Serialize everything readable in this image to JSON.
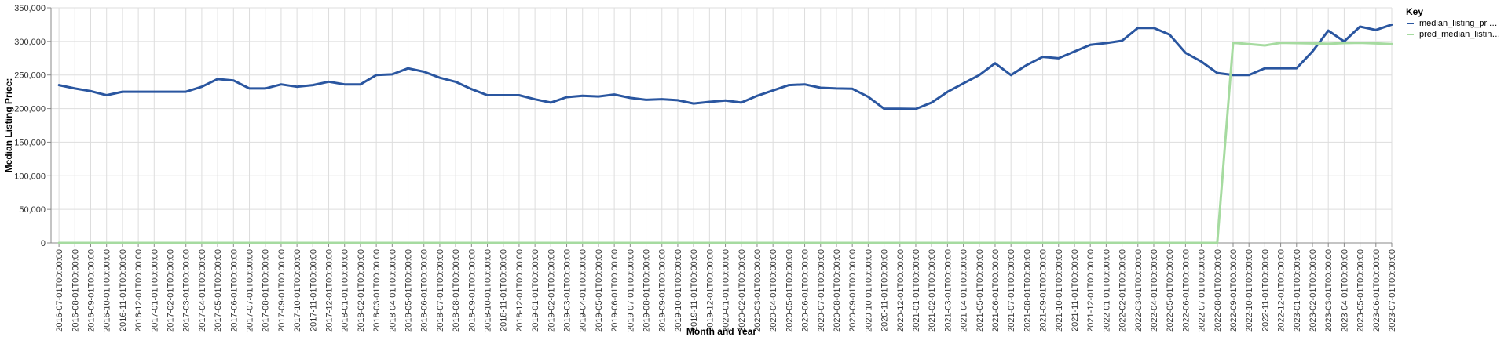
{
  "chart_data": {
    "type": "line",
    "xlabel": "Month and Year",
    "ylabel": "Median Listing Price:",
    "ylim": [
      0,
      350000
    ],
    "yticks": [
      0,
      50000,
      100000,
      150000,
      200000,
      250000,
      300000,
      350000
    ],
    "ytick_labels": [
      "0",
      "50,000",
      "100,000",
      "150,000",
      "200,000",
      "250,000",
      "300,000",
      "350,000"
    ],
    "grid": true,
    "legend_position": "top-right",
    "legend_title": "Key",
    "categories": [
      "2016-07-01T00:00:00",
      "2016-08-01T00:00:00",
      "2016-09-01T00:00:00",
      "2016-10-01T00:00:00",
      "2016-11-01T00:00:00",
      "2016-12-01T00:00:00",
      "2017-01-01T00:00:00",
      "2017-02-01T00:00:00",
      "2017-03-01T00:00:00",
      "2017-04-01T00:00:00",
      "2017-05-01T00:00:00",
      "2017-06-01T00:00:00",
      "2017-07-01T00:00:00",
      "2017-08-01T00:00:00",
      "2017-09-01T00:00:00",
      "2017-10-01T00:00:00",
      "2017-11-01T00:00:00",
      "2017-12-01T00:00:00",
      "2018-01-01T00:00:00",
      "2018-02-01T00:00:00",
      "2018-03-01T00:00:00",
      "2018-04-01T00:00:00",
      "2018-05-01T00:00:00",
      "2018-06-01T00:00:00",
      "2018-07-01T00:00:00",
      "2018-08-01T00:00:00",
      "2018-09-01T00:00:00",
      "2018-10-01T00:00:00",
      "2018-11-01T00:00:00",
      "2018-12-01T00:00:00",
      "2019-01-01T00:00:00",
      "2019-02-01T00:00:00",
      "2019-03-01T00:00:00",
      "2019-04-01T00:00:00",
      "2019-05-01T00:00:00",
      "2019-06-01T00:00:00",
      "2019-07-01T00:00:00",
      "2019-08-01T00:00:00",
      "2019-09-01T00:00:00",
      "2019-10-01T00:00:00",
      "2019-11-01T00:00:00",
      "2019-12-01T00:00:00",
      "2020-01-01T00:00:00",
      "2020-02-01T00:00:00",
      "2020-03-01T00:00:00",
      "2020-04-01T00:00:00",
      "2020-05-01T00:00:00",
      "2020-06-01T00:00:00",
      "2020-07-01T00:00:00",
      "2020-08-01T00:00:00",
      "2020-09-01T00:00:00",
      "2020-10-01T00:00:00",
      "2020-11-01T00:00:00",
      "2020-12-01T00:00:00",
      "2021-01-01T00:00:00",
      "2021-02-01T00:00:00",
      "2021-03-01T00:00:00",
      "2021-04-01T00:00:00",
      "2021-05-01T00:00:00",
      "2021-06-01T00:00:00",
      "2021-07-01T00:00:00",
      "2021-08-01T00:00:00",
      "2021-09-01T00:00:00",
      "2021-10-01T00:00:00",
      "2021-11-01T00:00:00",
      "2021-12-01T00:00:00",
      "2022-01-01T00:00:00",
      "2022-02-01T00:00:00",
      "2022-03-01T00:00:00",
      "2022-04-01T00:00:00",
      "2022-05-01T00:00:00",
      "2022-06-01T00:00:00",
      "2022-07-01T00:00:00",
      "2022-08-01T00:00:00",
      "2022-09-01T00:00:00",
      "2022-10-01T00:00:00",
      "2022-11-01T00:00:00",
      "2022-12-01T00:00:00",
      "2023-01-01T00:00:00",
      "2023-02-01T00:00:00",
      "2023-03-01T00:00:00",
      "2023-04-01T00:00:00",
      "2023-05-01T00:00:00",
      "2023-06-01T00:00:00",
      "2023-07-01T00:00:00"
    ],
    "series": [
      {
        "name": "median_listing_pri…",
        "color": "#2a56a0",
        "values": [
          235000,
          229900,
          226000,
          219900,
          225000,
          225000,
          225000,
          225000,
          225000,
          232500,
          243900,
          241900,
          230000,
          230000,
          236000,
          232500,
          235000,
          240000,
          236000,
          236000,
          249900,
          251000,
          259900,
          254900,
          245900,
          239900,
          229000,
          219900,
          219900,
          219900,
          213900,
          209000,
          217000,
          219000,
          218000,
          221000,
          216000,
          213000,
          214000,
          212500,
          207500,
          210000,
          212000,
          209000,
          219000,
          227000,
          235000,
          236000,
          231000,
          230000,
          229500,
          217500,
          199900,
          199900,
          199500,
          209000,
          224900,
          237500,
          249900,
          267500,
          249900,
          265000,
          277000,
          274900,
          285000,
          294900,
          297500,
          301000,
          320000,
          320000,
          310000,
          283000,
          270000,
          253000,
          250000,
          250000,
          260000,
          260000,
          260000,
          285000,
          316000,
          300000,
          322000,
          317000,
          325000
        ]
      },
      {
        "name": "pred_median_listin…",
        "color": "#a6dba0",
        "values": [
          0,
          0,
          0,
          0,
          0,
          0,
          0,
          0,
          0,
          0,
          0,
          0,
          0,
          0,
          0,
          0,
          0,
          0,
          0,
          0,
          0,
          0,
          0,
          0,
          0,
          0,
          0,
          0,
          0,
          0,
          0,
          0,
          0,
          0,
          0,
          0,
          0,
          0,
          0,
          0,
          0,
          0,
          0,
          0,
          0,
          0,
          0,
          0,
          0,
          0,
          0,
          0,
          0,
          0,
          0,
          0,
          0,
          0,
          0,
          0,
          0,
          0,
          0,
          0,
          0,
          0,
          0,
          0,
          0,
          0,
          0,
          0,
          0,
          0,
          298000,
          296000,
          294000,
          298000,
          297500,
          297000,
          296500,
          297500,
          298000,
          297000,
          296000
        ]
      }
    ]
  }
}
